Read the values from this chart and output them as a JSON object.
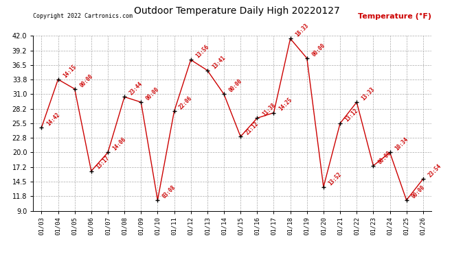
{
  "title": "Outdoor Temperature Daily High 20220127",
  "copyright": "Copyright 2022 Cartronics.com",
  "ylabel": "Temperature (°F)",
  "dates": [
    "01/03",
    "01/04",
    "01/05",
    "01/06",
    "01/07",
    "01/08",
    "01/09",
    "01/10",
    "01/11",
    "01/12",
    "01/13",
    "01/14",
    "01/15",
    "01/16",
    "01/17",
    "01/18",
    "01/19",
    "01/20",
    "01/21",
    "01/22",
    "01/23",
    "01/24",
    "01/25",
    "01/26"
  ],
  "values": [
    24.7,
    33.8,
    32.0,
    16.5,
    20.0,
    30.5,
    29.5,
    11.0,
    27.8,
    37.5,
    35.5,
    31.0,
    23.0,
    26.5,
    27.5,
    41.5,
    37.8,
    13.5,
    25.5,
    29.5,
    17.5,
    20.0,
    11.0,
    15.0
  ],
  "labels": [
    "14:42",
    "14:15",
    "00:00",
    "13:17",
    "14:06",
    "23:44",
    "00:00",
    "03:08",
    "22:06",
    "13:56",
    "13:41",
    "00:00",
    "21:12",
    "11:38",
    "14:25",
    "18:33",
    "00:00",
    "13:52",
    "13:12",
    "13:33",
    "00:00",
    "10:34",
    "00:00",
    "23:54"
  ],
  "yticks": [
    9.0,
    11.8,
    14.5,
    17.2,
    20.0,
    22.8,
    25.5,
    28.2,
    31.0,
    33.8,
    36.5,
    39.2,
    42.0
  ],
  "ylim": [
    9.0,
    42.0
  ],
  "line_color": "#cc0000",
  "label_color": "#cc0000",
  "bg_color": "#ffffff",
  "grid_color": "#aaaaaa",
  "title_color": "#000000",
  "copyright_color": "#000000",
  "ylabel_color": "#cc0000"
}
